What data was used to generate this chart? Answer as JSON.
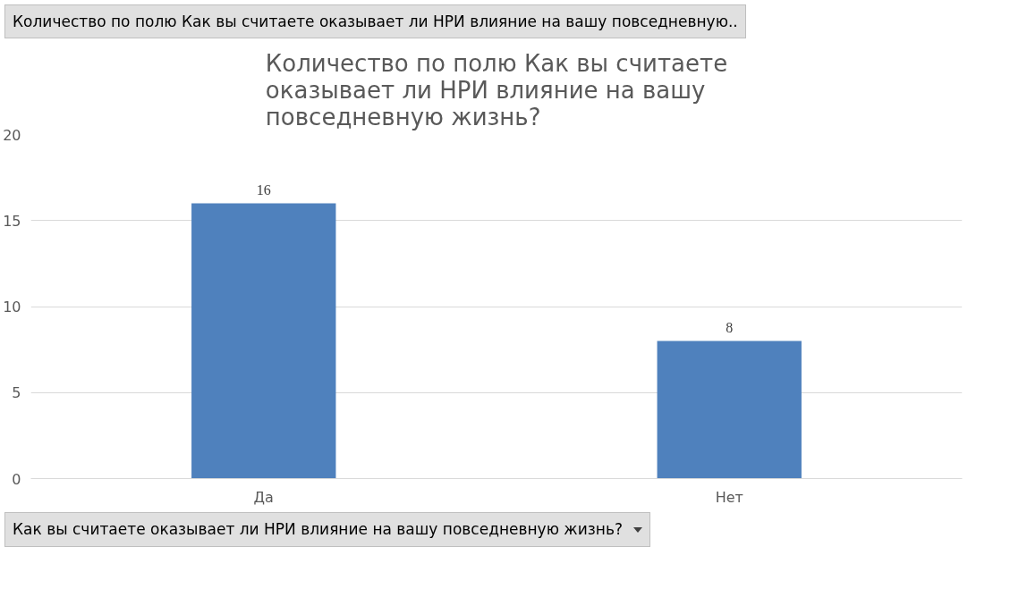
{
  "chart_data": {
    "type": "bar",
    "title": "Количество по полю Как вы считаете оказывает ли НРИ влияние на вашу повседневную жизнь?",
    "categories": [
      "Да",
      "Нет"
    ],
    "values": [
      16,
      8
    ],
    "color": "#4f81bd",
    "ylim": [
      0,
      20
    ],
    "yticks": [
      0,
      5,
      10,
      15,
      20
    ],
    "grid": "y",
    "data_labels": true,
    "annotations": [
      "Количество по полю Как вы считаете оказывает ли НРИ влияние на вашу повседневную..",
      "Как вы считаете оказывает ли НРИ влияние на вашу повседневную жизнь?"
    ]
  }
}
